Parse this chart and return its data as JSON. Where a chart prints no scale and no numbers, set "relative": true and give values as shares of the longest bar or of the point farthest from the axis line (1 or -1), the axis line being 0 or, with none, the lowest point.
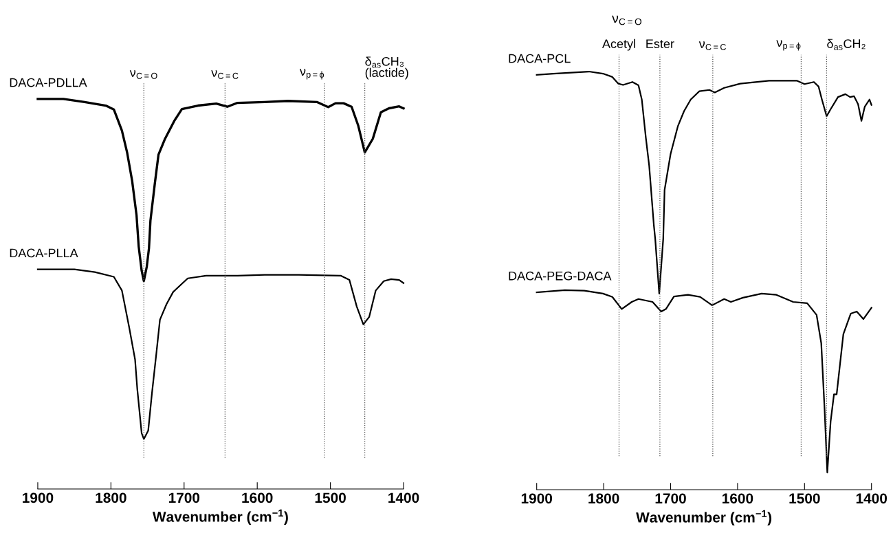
{
  "chart_data": [
    {
      "type": "line",
      "relative": true,
      "xlabel": "Wavenumber (cm$^{−1}$)",
      "xlim": [
        1900,
        1400
      ],
      "xticks": [
        1900,
        1800,
        1700,
        1600,
        1500,
        1400
      ],
      "tick_labels": "x",
      "line_style": "solid",
      "ref_lines": [
        {
          "axis": "x",
          "value": 1755,
          "label": "ν$_{C=O}$",
          "color": "#555555",
          "line_style": "dotted"
        },
        {
          "axis": "x",
          "value": 1644,
          "label": "ν$_{C=C}$",
          "color": "#555555",
          "line_style": "dotted"
        },
        {
          "axis": "x",
          "value": 1508,
          "label": "ν$_{p=ϕ}$",
          "color": "#555555",
          "line_style": "dotted"
        },
        {
          "axis": "x",
          "value": 1453,
          "label": "δ$_{as}$CH₃\n(lactide)",
          "color": "#555555",
          "line_style": "dotted"
        }
      ],
      "series": [
        {
          "name": "DACA-PDLLA",
          "color": "#000000",
          "x": [
            1900,
            1865,
            1836,
            1807,
            1796,
            1785,
            1778,
            1771,
            1765,
            1762,
            1758,
            1755,
            1751,
            1748,
            1746,
            1740,
            1735,
            1726,
            1713,
            1703,
            1681,
            1656,
            1641,
            1627,
            1590,
            1558,
            1518,
            1503,
            1493,
            1482,
            1471,
            1462,
            1453,
            1442,
            1431,
            1420,
            1406,
            1400
          ],
          "values": [
            1.0,
            1.0,
            0.992,
            0.983,
            0.973,
            0.919,
            0.864,
            0.79,
            0.702,
            0.621,
            0.56,
            0.533,
            0.57,
            0.617,
            0.688,
            0.783,
            0.857,
            0.898,
            0.945,
            0.974,
            0.983,
            0.988,
            0.98,
            0.99,
            0.992,
            0.995,
            0.992,
            0.979,
            0.989,
            0.989,
            0.98,
            0.932,
            0.863,
            0.898,
            0.966,
            0.976,
            0.981,
            0.976
          ]
        },
        {
          "name": "DACA-PLLA",
          "color": "#000000",
          "x": [
            1900,
            1850,
            1822,
            1796,
            1785,
            1775,
            1767,
            1764,
            1758,
            1755,
            1749,
            1744,
            1738,
            1733,
            1724,
            1715,
            1695,
            1670,
            1627,
            1590,
            1543,
            1486,
            1474,
            1464,
            1455,
            1447,
            1438,
            1427,
            1417,
            1406,
            1400
          ],
          "values": [
            0.563,
            0.563,
            0.556,
            0.544,
            0.509,
            0.414,
            0.332,
            0.257,
            0.143,
            0.128,
            0.15,
            0.244,
            0.346,
            0.434,
            0.474,
            0.505,
            0.54,
            0.547,
            0.547,
            0.549,
            0.549,
            0.547,
            0.536,
            0.468,
            0.422,
            0.441,
            0.509,
            0.533,
            0.538,
            0.536,
            0.528
          ]
        }
      ]
    },
    {
      "type": "line",
      "relative": true,
      "xlabel": "Wavenumber (cm$^{−1}$)",
      "xlim": [
        1900,
        1400
      ],
      "xticks": [
        1900,
        1800,
        1700,
        1600,
        1500,
        1400
      ],
      "tick_labels": "x",
      "line_style": "solid",
      "annotations": [
        "ν$_{C=O}$"
      ],
      "ref_lines": [
        {
          "axis": "x",
          "value": 1777,
          "label": "Acetyl",
          "color": "#555555",
          "line_style": "dotted"
        },
        {
          "axis": "x",
          "value": 1716,
          "label": "Ester",
          "color": "#555555",
          "line_style": "dotted"
        },
        {
          "axis": "x",
          "value": 1637,
          "label": "ν$_{C=C}$",
          "color": "#555555",
          "line_style": "dotted"
        },
        {
          "axis": "x",
          "value": 1505,
          "label": "ν$_{p=ϕ}$",
          "color": "#555555",
          "line_style": "dotted"
        },
        {
          "axis": "x",
          "value": 1467,
          "label": "δ$_{as}$CH₂",
          "color": "#555555",
          "line_style": "dotted"
        }
      ],
      "series": [
        {
          "name": "DACA-PCL",
          "color": "#000000",
          "x": [
            1900,
            1875,
            1822,
            1801,
            1787,
            1778,
            1771,
            1757,
            1748,
            1743,
            1737,
            1732,
            1725,
            1723,
            1717,
            1711,
            1709,
            1700,
            1689,
            1680,
            1670,
            1657,
            1642,
            1634,
            1620,
            1596,
            1553,
            1511,
            1500,
            1486,
            1479,
            1474,
            1467,
            1461,
            1450,
            1439,
            1432,
            1426,
            1420,
            1415,
            1410,
            1403,
            1400
          ],
          "values": [
            0.992,
            0.995,
            1.0,
            0.995,
            0.987,
            0.971,
            0.968,
            0.975,
            0.967,
            0.933,
            0.842,
            0.775,
            0.632,
            0.6,
            0.469,
            0.6,
            0.717,
            0.803,
            0.87,
            0.905,
            0.933,
            0.953,
            0.956,
            0.95,
            0.961,
            0.971,
            0.978,
            0.978,
            0.97,
            0.975,
            0.964,
            0.933,
            0.893,
            0.91,
            0.939,
            0.946,
            0.939,
            0.941,
            0.922,
            0.882,
            0.916,
            0.933,
            0.92
          ]
        },
        {
          "name": "DACA-PEG-DACA",
          "color": "#000000",
          "x": [
            1900,
            1858,
            1829,
            1801,
            1787,
            1773,
            1758,
            1748,
            1727,
            1714,
            1707,
            1695,
            1674,
            1656,
            1638,
            1620,
            1610,
            1592,
            1564,
            1542,
            1517,
            1496,
            1482,
            1475,
            1470,
            1466,
            1461,
            1456,
            1452,
            1442,
            1431,
            1422,
            1412,
            1400
          ],
          "values": [
            0.472,
            0.477,
            0.476,
            0.469,
            0.461,
            0.432,
            0.449,
            0.456,
            0.449,
            0.426,
            0.432,
            0.462,
            0.466,
            0.461,
            0.441,
            0.456,
            0.449,
            0.459,
            0.469,
            0.466,
            0.449,
            0.446,
            0.418,
            0.35,
            0.191,
            0.041,
            0.163,
            0.228,
            0.228,
            0.372,
            0.421,
            0.426,
            0.408,
            0.435
          ]
        }
      ]
    }
  ]
}
